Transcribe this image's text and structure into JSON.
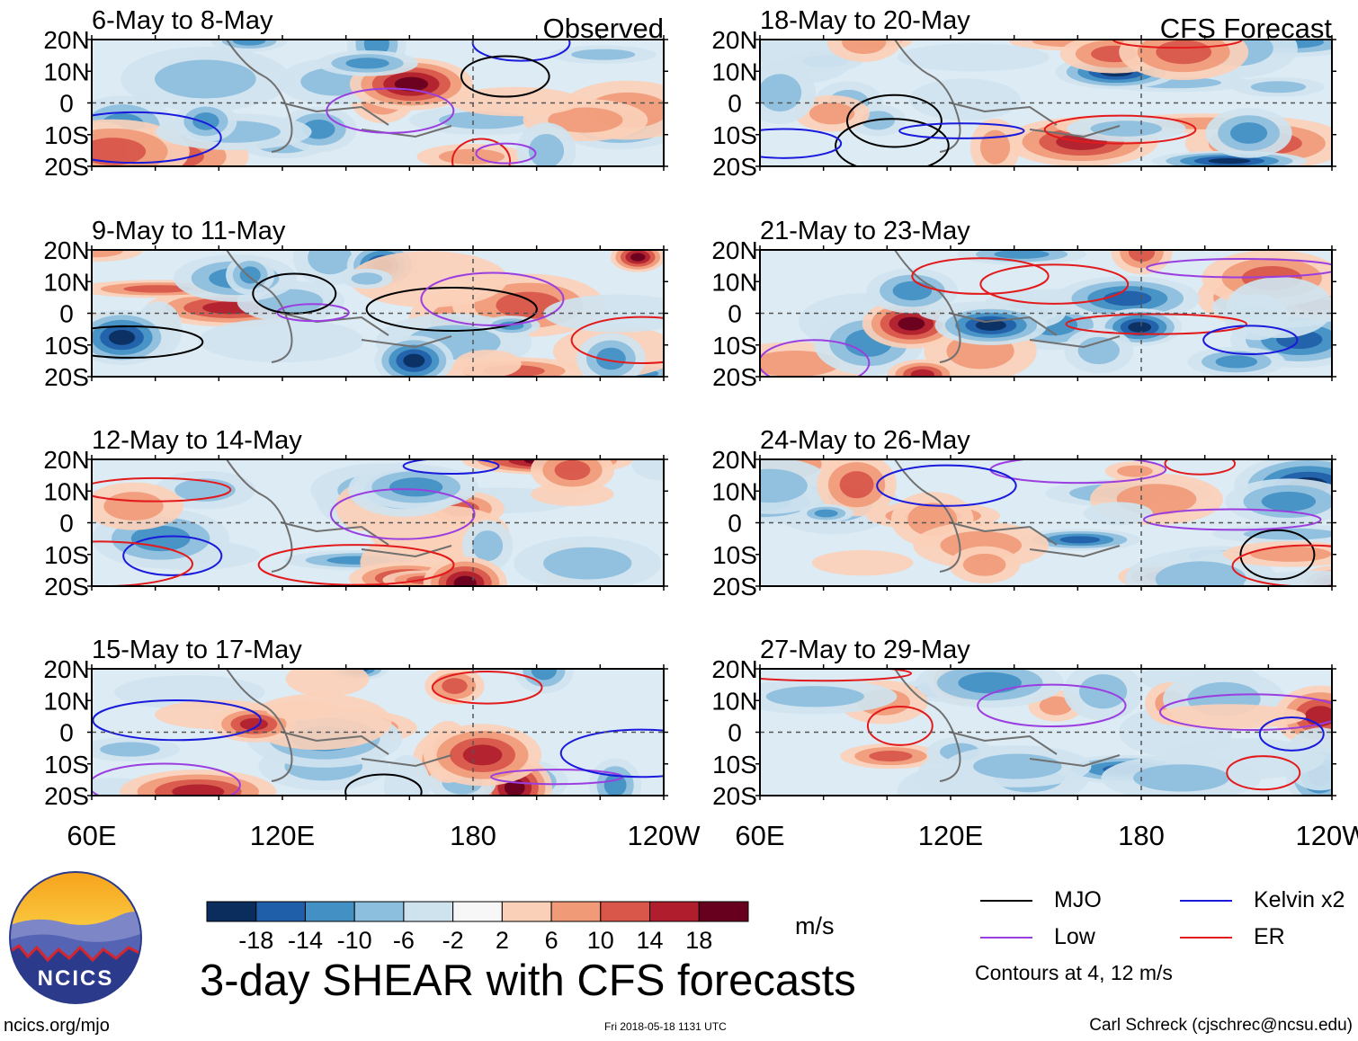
{
  "chart_data": {
    "type": "heatmap",
    "title": "3-day SHEAR with CFS forecasts",
    "units": "m/s",
    "colorbar": {
      "ticks": [
        "-18",
        "-14",
        "-10",
        "-6",
        "-2",
        "2",
        "6",
        "10",
        "14",
        "18"
      ],
      "colors": [
        "#0b2d5e",
        "#1f5ea8",
        "#4390c4",
        "#8cbedd",
        "#cfe3ef",
        "#f7f7f7",
        "#fbd0b8",
        "#f09a78",
        "#d8564a",
        "#b01e2e",
        "#67001f"
      ]
    },
    "x_ticks": [
      "60E",
      "120E",
      "180",
      "120W"
    ],
    "y_ticks": [
      "20N",
      "10N",
      "0",
      "10S",
      "20S"
    ],
    "xlim_lon": [
      60,
      240
    ],
    "ylim_lat": [
      -20,
      20
    ],
    "columns": [
      {
        "label": "Observed",
        "panels": [
          {
            "title": "6-May to 8-May"
          },
          {
            "title": "9-May to 11-May"
          },
          {
            "title": "12-May to 14-May"
          },
          {
            "title": "15-May to 17-May"
          }
        ]
      },
      {
        "label": "CFS Forecast",
        "panels": [
          {
            "title": "18-May to 20-May"
          },
          {
            "title": "21-May to 23-May"
          },
          {
            "title": "24-May to 26-May"
          },
          {
            "title": "27-May to 29-May"
          }
        ]
      }
    ],
    "legend": {
      "items": [
        {
          "name": "MJO",
          "color": "#000000"
        },
        {
          "name": "Kelvin x2",
          "color": "#1a1adc"
        },
        {
          "name": "Low",
          "color": "#9b3ee0"
        },
        {
          "name": "ER",
          "color": "#e31a1c"
        }
      ],
      "note": "Contours at 4, 12 m/s"
    }
  },
  "logo": {
    "text": "NCICS"
  },
  "footer": {
    "url": "ncics.org/mjo",
    "timestamp": "Fri 2018-05-18 1131 UTC",
    "author": "Carl Schreck (cjschrec@ncsu.edu)"
  }
}
